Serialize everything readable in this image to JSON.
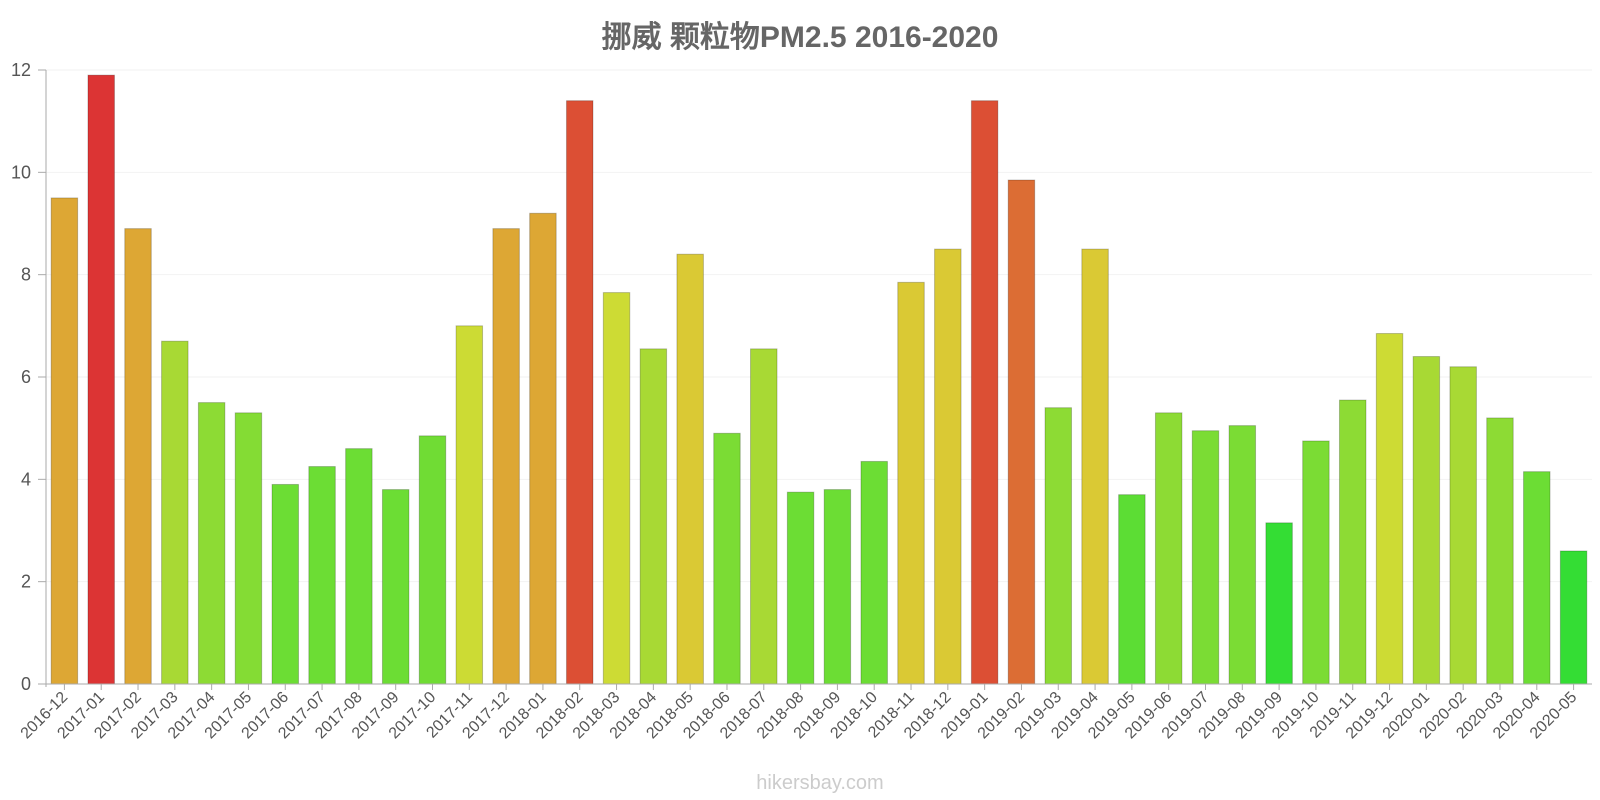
{
  "watermark": "hikersbay.com",
  "chart_data": {
    "type": "bar",
    "title": "挪威 颗粒物PM2.5 2016-2020",
    "xlabel": "",
    "ylabel": "",
    "ylim": [
      0,
      12
    ],
    "yticks": [
      0,
      2,
      4,
      6,
      8,
      10,
      12
    ],
    "grid": true,
    "legend": "none",
    "categories": [
      "2016-12",
      "2017-01",
      "2017-02",
      "2017-03",
      "2017-04",
      "2017-05",
      "2017-06",
      "2017-07",
      "2017-08",
      "2017-09",
      "2017-10",
      "2017-11",
      "2017-12",
      "2018-01",
      "2018-02",
      "2018-03",
      "2018-04",
      "2018-05",
      "2018-06",
      "2018-07",
      "2018-08",
      "2018-09",
      "2018-10",
      "2018-11",
      "2018-12",
      "2019-01",
      "2019-02",
      "2019-03",
      "2019-04",
      "2019-05",
      "2019-06",
      "2019-07",
      "2019-08",
      "2019-09",
      "2019-10",
      "2019-11",
      "2019-12",
      "2020-01",
      "2020-02",
      "2020-03",
      "2020-04",
      "2020-05"
    ],
    "values": [
      9.5,
      11.9,
      8.9,
      6.7,
      5.5,
      5.3,
      3.9,
      4.25,
      4.6,
      3.8,
      4.85,
      7.0,
      8.9,
      9.2,
      11.4,
      7.65,
      6.55,
      8.4,
      4.9,
      6.55,
      3.75,
      3.8,
      4.35,
      7.85,
      8.5,
      11.4,
      9.85,
      5.4,
      8.5,
      3.7,
      5.3,
      4.95,
      5.05,
      3.15,
      4.75,
      5.55,
      6.85,
      6.4,
      6.2,
      5.2,
      4.15,
      2.6
    ],
    "colors": [
      "#dda734",
      "#dc3434",
      "#dda734",
      "#a8d934",
      "#8ddb34",
      "#84dc34",
      "#6cdd34",
      "#6cdd34",
      "#6cdd34",
      "#6cdd34",
      "#70dc34",
      "#ccdb34",
      "#dda734",
      "#dda734",
      "#dc4f34",
      "#cddb34",
      "#a8d934",
      "#dac934",
      "#7bdc34",
      "#a8d934",
      "#6cdd34",
      "#6cdd34",
      "#6cdd34",
      "#dac934",
      "#dac934",
      "#dc4f34",
      "#dc6d34",
      "#8ddb34",
      "#dac934",
      "#5cdd34",
      "#8ddb34",
      "#7bdc34",
      "#7bdc34",
      "#34dd34",
      "#7bdc34",
      "#8ddb34",
      "#cddb34",
      "#a8d934",
      "#a8d934",
      "#8ddb34",
      "#6cdd34",
      "#34dd34"
    ]
  }
}
